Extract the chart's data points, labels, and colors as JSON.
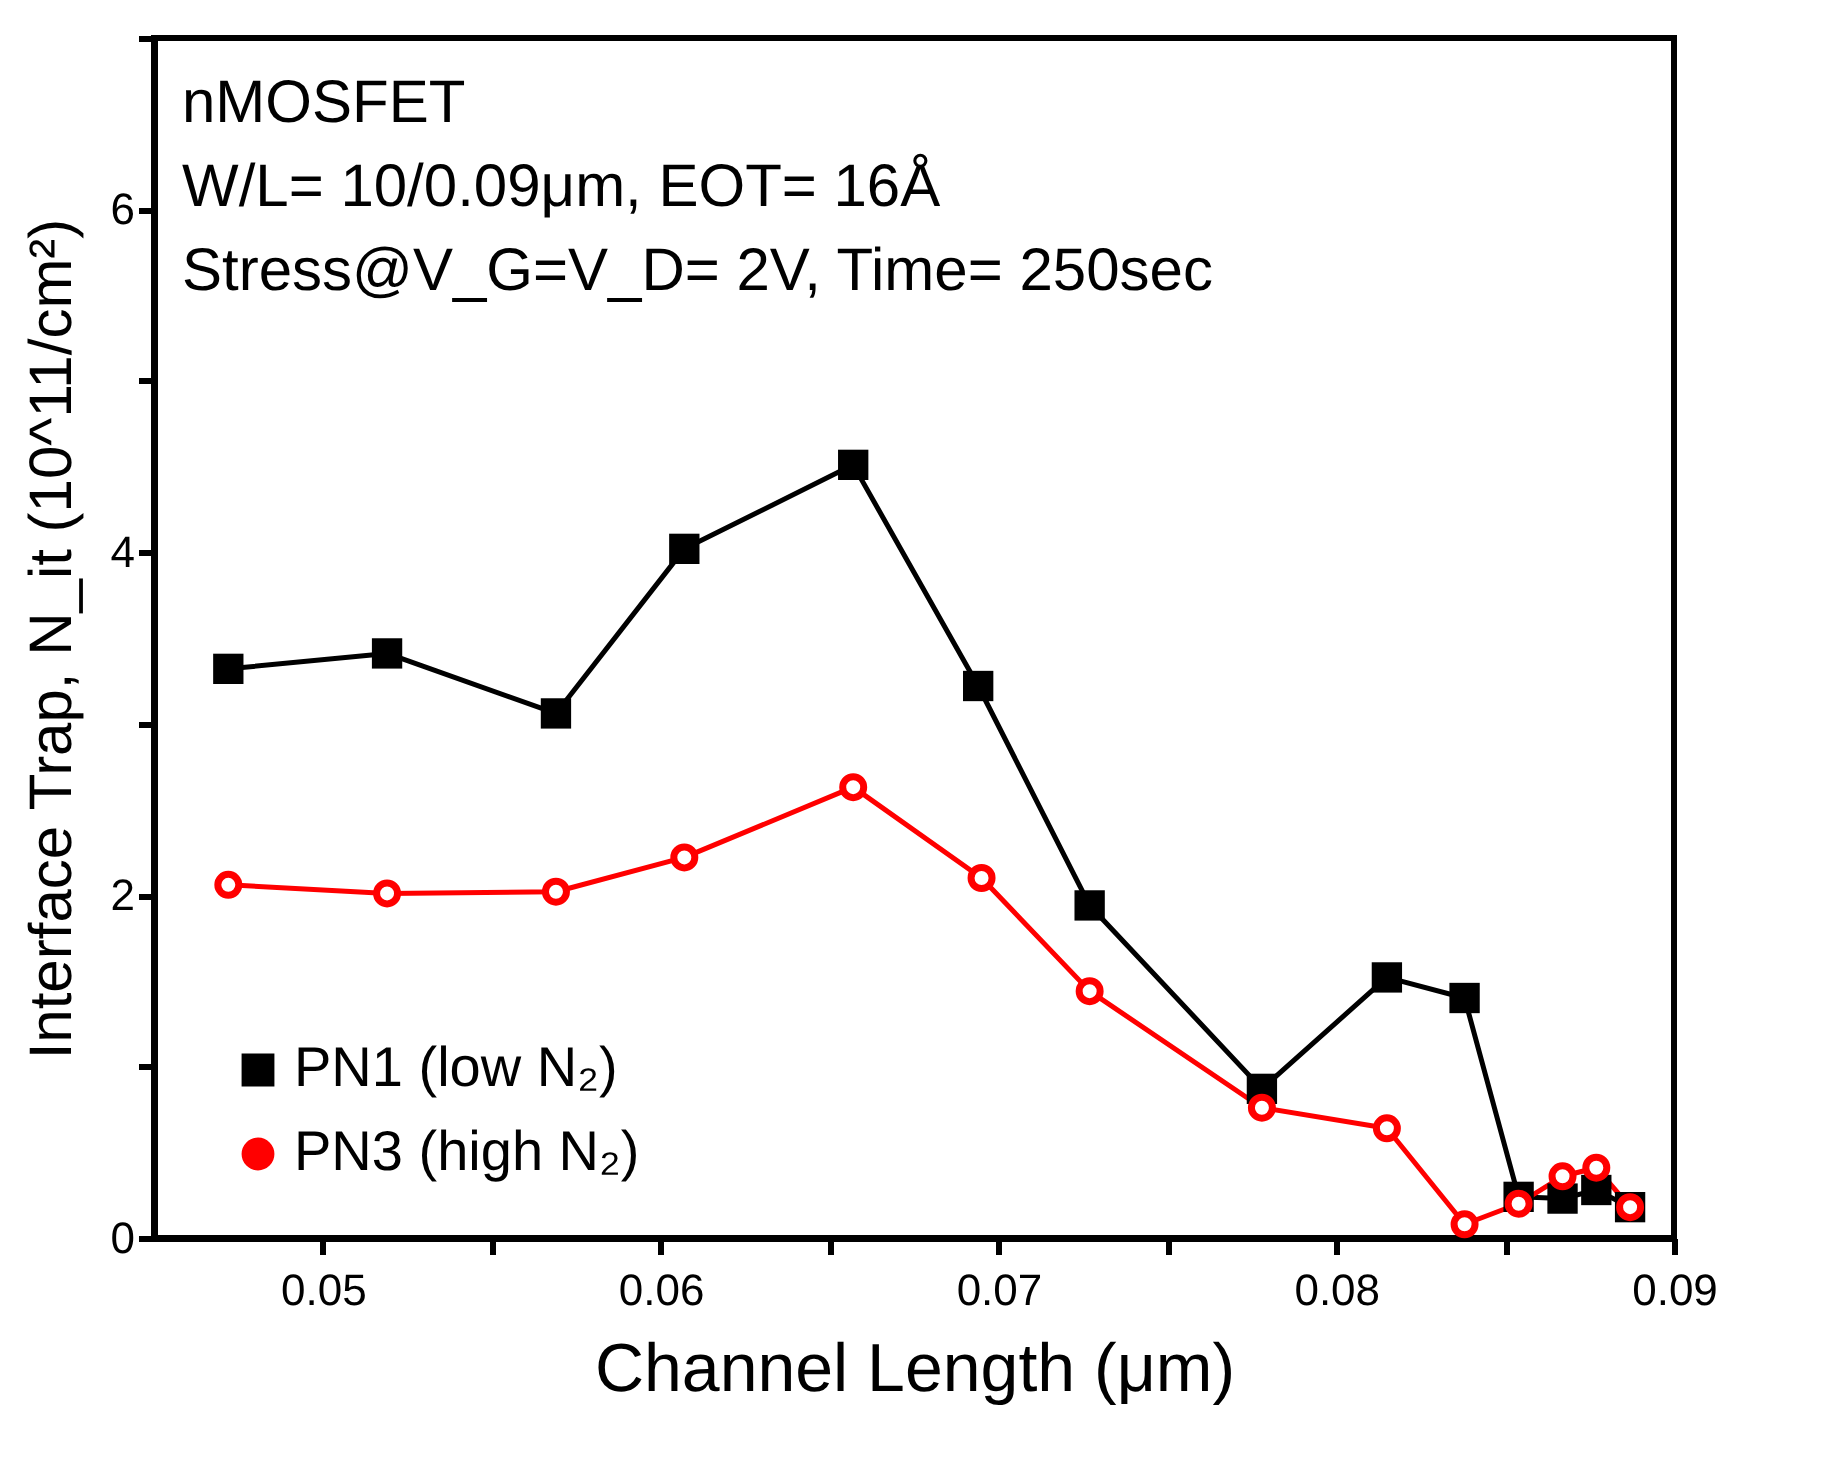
{
  "chart_data": {
    "type": "line",
    "xlabel": "Channel Length (μm)",
    "ylabel": "Interface Trap, N_it (10^11/cm²)",
    "annotations": [
      "nMOSFET",
      "W/L= 10/0.09μm, EOT= 16Å",
      "Stress@V_G=V_D= 2V, Time= 250sec"
    ],
    "xlim": [
      0.045,
      0.09
    ],
    "ylim": [
      0,
      7
    ],
    "xticks": [
      0.05,
      {
        "value": 0.055,
        "label": null
      },
      0.06,
      {
        "value": 0.065,
        "label": null
      },
      0.07,
      {
        "value": 0.075,
        "label": null
      },
      0.08,
      {
        "value": 0.085,
        "label": null
      },
      0.09
    ],
    "yticks": [
      0,
      {
        "value": 1,
        "label": null
      },
      2,
      {
        "value": 3,
        "label": null
      },
      4,
      {
        "value": 5,
        "label": null
      },
      6,
      {
        "value": 7,
        "label": null
      }
    ],
    "grid": false,
    "legend": "bottom left",
    "line_style": "solid",
    "series": [
      {
        "name": "PN1 (low N₂)",
        "color": "#000000",
        "marker": "square",
        "x": [
          0.0472,
          0.0519,
          0.0569,
          0.0607,
          0.0657,
          0.0694,
          0.0727,
          0.0778,
          0.0815,
          0.0838,
          0.0854,
          0.0867,
          0.0877,
          0.0887
        ],
        "values": [
          3.32,
          3.41,
          3.06,
          4.02,
          4.51,
          3.22,
          1.94,
          0.87,
          1.52,
          1.4,
          0.24,
          0.23,
          0.28,
          0.18
        ]
      },
      {
        "name": "PN3 (high N₂)",
        "color": "#ff0000",
        "marker": "circle",
        "x": [
          0.0472,
          0.0519,
          0.0569,
          0.0607,
          0.0657,
          0.0695,
          0.0727,
          0.0778,
          0.0815,
          0.0838,
          0.0854,
          0.0867,
          0.0877,
          0.0887
        ],
        "values": [
          2.06,
          2.01,
          2.02,
          2.22,
          2.63,
          2.1,
          1.44,
          0.76,
          0.64,
          0.08,
          0.2,
          0.36,
          0.41,
          0.18
        ]
      }
    ]
  }
}
